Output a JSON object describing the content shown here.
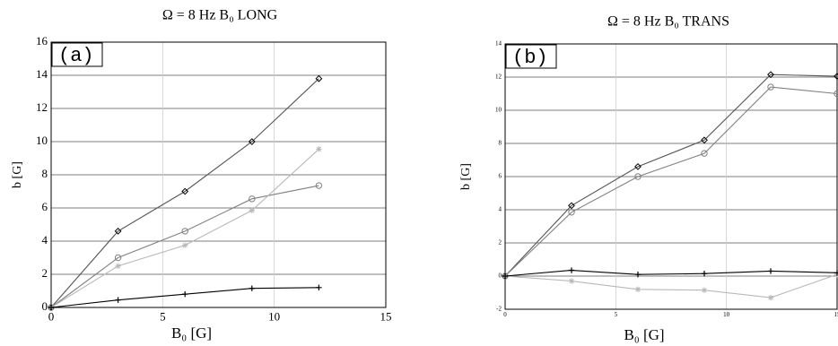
{
  "chart_data": [
    {
      "type": "line",
      "title": "Ω = 8 Hz   B₀ LONG",
      "x_label": "B₀  [G]",
      "y_label": "b  [G]",
      "annotation": "(a)",
      "x": [
        0,
        3,
        6,
        9,
        12
      ],
      "series": [
        {
          "color": "#555555",
          "marker": "diamond",
          "values": [
            0,
            4.6,
            7.0,
            10.0,
            13.8
          ]
        },
        {
          "color": "#808080",
          "marker": "circle",
          "values": [
            0,
            3.0,
            4.6,
            6.55,
            7.35
          ]
        },
        {
          "color": "#b8b8b8",
          "marker": "star",
          "values": [
            0,
            2.5,
            3.75,
            5.85,
            9.55
          ]
        },
        {
          "color": "#000000",
          "marker": "plus",
          "values": [
            0,
            0.45,
            0.8,
            1.15,
            1.2
          ]
        }
      ],
      "xlim": [
        0,
        15
      ],
      "xticks": [
        0,
        5,
        10,
        15
      ],
      "ylim": [
        0,
        16
      ],
      "yticks": [
        0,
        2,
        4,
        6,
        8,
        10,
        12,
        14,
        16
      ],
      "grid": true
    },
    {
      "type": "line",
      "title": "Ω = 8 Hz   B₀ TRANS",
      "x_label": "B₀  [G]",
      "y_label": "b  [G]",
      "annotation": "(b)",
      "x": [
        0,
        3,
        6,
        9,
        12,
        15
      ],
      "series": [
        {
          "color": "#555555",
          "marker": "diamond",
          "values": [
            0,
            4.25,
            6.6,
            8.2,
            12.15,
            12.05
          ]
        },
        {
          "color": "#808080",
          "marker": "circle",
          "values": [
            0,
            3.85,
            6.0,
            7.4,
            11.4,
            11.0
          ]
        },
        {
          "color": "#b8b8b8",
          "marker": "star",
          "values": [
            0,
            -0.3,
            -0.8,
            -0.85,
            -1.3,
            0.1
          ]
        },
        {
          "color": "#000000",
          "marker": "plus",
          "values": [
            0,
            0.35,
            0.1,
            0.15,
            0.3,
            0.2
          ]
        }
      ],
      "xlim": [
        0,
        15
      ],
      "xticks": [
        0,
        5,
        10,
        15
      ],
      "ylim": [
        -2,
        14
      ],
      "yticks": [
        -2,
        0,
        2,
        4,
        6,
        8,
        10,
        12,
        14
      ],
      "grid": true
    }
  ]
}
